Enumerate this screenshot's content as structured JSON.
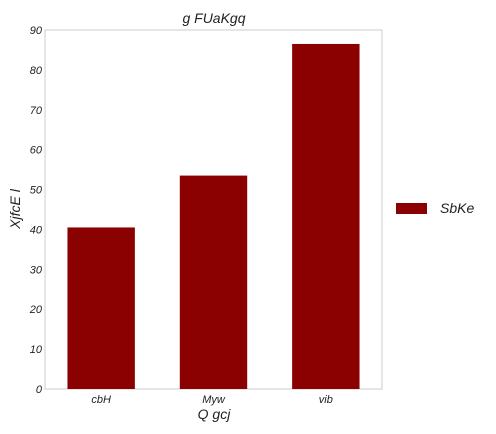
{
  "chart_data": {
    "type": "bar",
    "title": "g FUaKgq",
    "xlabel": "Q gcj",
    "ylabel": "XjfcE l",
    "categories": [
      "cbH",
      "Myw",
      "vib"
    ],
    "series": [
      {
        "name": "SbKe",
        "values": [
          40.5,
          53.5,
          86.5
        ],
        "color": "#8b0000"
      }
    ],
    "ylim": [
      0,
      90
    ],
    "yticks": [
      0,
      10,
      20,
      30,
      40,
      50,
      60,
      70,
      80,
      90
    ],
    "grid": false,
    "legend_position": "right"
  }
}
